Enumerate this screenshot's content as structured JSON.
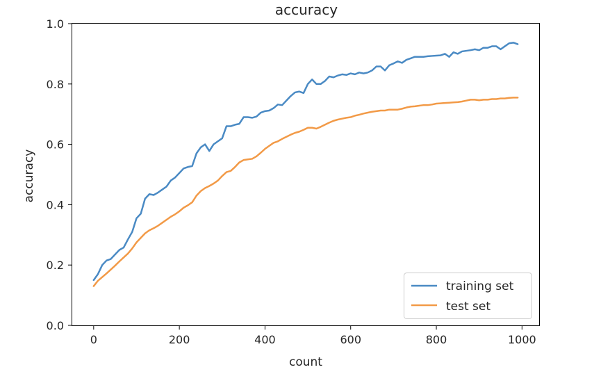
{
  "chart_data": {
    "type": "line",
    "title": "accuracy",
    "xlabel": "count",
    "ylabel": "accuracy",
    "xlim": [
      -50,
      1040
    ],
    "ylim": [
      0.0,
      1.0
    ],
    "xticks": [
      0,
      200,
      400,
      600,
      800,
      1000
    ],
    "xtick_labels": [
      "0",
      "200",
      "400",
      "600",
      "800",
      "1000"
    ],
    "yticks": [
      0.0,
      0.2,
      0.4,
      0.6,
      0.8,
      1.0
    ],
    "ytick_labels": [
      "0.0",
      "0.2",
      "0.4",
      "0.6",
      "0.8",
      "1.0"
    ],
    "grid": false,
    "legend_position": "lower-right",
    "x": [
      0,
      10,
      20,
      30,
      40,
      50,
      60,
      70,
      80,
      90,
      100,
      110,
      120,
      130,
      140,
      150,
      160,
      170,
      180,
      190,
      200,
      210,
      220,
      230,
      240,
      250,
      260,
      270,
      280,
      290,
      300,
      310,
      320,
      330,
      340,
      350,
      360,
      370,
      380,
      390,
      400,
      410,
      420,
      430,
      440,
      450,
      460,
      470,
      480,
      490,
      500,
      510,
      520,
      530,
      540,
      550,
      560,
      570,
      580,
      590,
      600,
      610,
      620,
      630,
      640,
      650,
      660,
      670,
      680,
      690,
      700,
      710,
      720,
      730,
      740,
      750,
      760,
      770,
      780,
      790,
      800,
      810,
      820,
      830,
      840,
      850,
      860,
      870,
      880,
      890,
      900,
      910,
      920,
      930,
      940,
      950,
      960,
      970,
      980,
      990
    ],
    "series": [
      {
        "name": "training set",
        "color": "#4a8ac4",
        "values": [
          0.15,
          0.17,
          0.2,
          0.215,
          0.22,
          0.235,
          0.25,
          0.258,
          0.285,
          0.31,
          0.355,
          0.37,
          0.42,
          0.435,
          0.432,
          0.44,
          0.45,
          0.46,
          0.48,
          0.49,
          0.505,
          0.52,
          0.525,
          0.528,
          0.57,
          0.59,
          0.6,
          0.578,
          0.6,
          0.61,
          0.62,
          0.66,
          0.66,
          0.665,
          0.668,
          0.69,
          0.69,
          0.688,
          0.692,
          0.705,
          0.71,
          0.712,
          0.72,
          0.732,
          0.73,
          0.745,
          0.76,
          0.772,
          0.775,
          0.77,
          0.8,
          0.815,
          0.8,
          0.8,
          0.81,
          0.825,
          0.822,
          0.828,
          0.832,
          0.83,
          0.835,
          0.832,
          0.838,
          0.835,
          0.838,
          0.845,
          0.858,
          0.858,
          0.845,
          0.862,
          0.868,
          0.875,
          0.87,
          0.88,
          0.885,
          0.89,
          0.89,
          0.89,
          0.892,
          0.893,
          0.894,
          0.895,
          0.9,
          0.89,
          0.905,
          0.9,
          0.908,
          0.91,
          0.912,
          0.915,
          0.912,
          0.92,
          0.92,
          0.925,
          0.925,
          0.915,
          0.925,
          0.935,
          0.937,
          0.932
        ]
      },
      {
        "name": "test set",
        "color": "#f29a47",
        "values": [
          0.13,
          0.148,
          0.16,
          0.172,
          0.185,
          0.198,
          0.212,
          0.225,
          0.238,
          0.255,
          0.275,
          0.29,
          0.305,
          0.315,
          0.322,
          0.33,
          0.34,
          0.35,
          0.36,
          0.368,
          0.378,
          0.39,
          0.398,
          0.408,
          0.43,
          0.445,
          0.455,
          0.462,
          0.47,
          0.48,
          0.495,
          0.508,
          0.512,
          0.525,
          0.54,
          0.548,
          0.55,
          0.552,
          0.56,
          0.572,
          0.585,
          0.595,
          0.605,
          0.61,
          0.618,
          0.625,
          0.632,
          0.638,
          0.642,
          0.648,
          0.655,
          0.655,
          0.652,
          0.658,
          0.665,
          0.672,
          0.678,
          0.682,
          0.685,
          0.688,
          0.69,
          0.695,
          0.698,
          0.702,
          0.705,
          0.708,
          0.71,
          0.712,
          0.712,
          0.715,
          0.715,
          0.715,
          0.718,
          0.722,
          0.725,
          0.726,
          0.728,
          0.73,
          0.73,
          0.732,
          0.735,
          0.736,
          0.737,
          0.738,
          0.739,
          0.74,
          0.742,
          0.745,
          0.748,
          0.748,
          0.746,
          0.748,
          0.748,
          0.75,
          0.75,
          0.752,
          0.752,
          0.754,
          0.755,
          0.755
        ]
      }
    ]
  }
}
